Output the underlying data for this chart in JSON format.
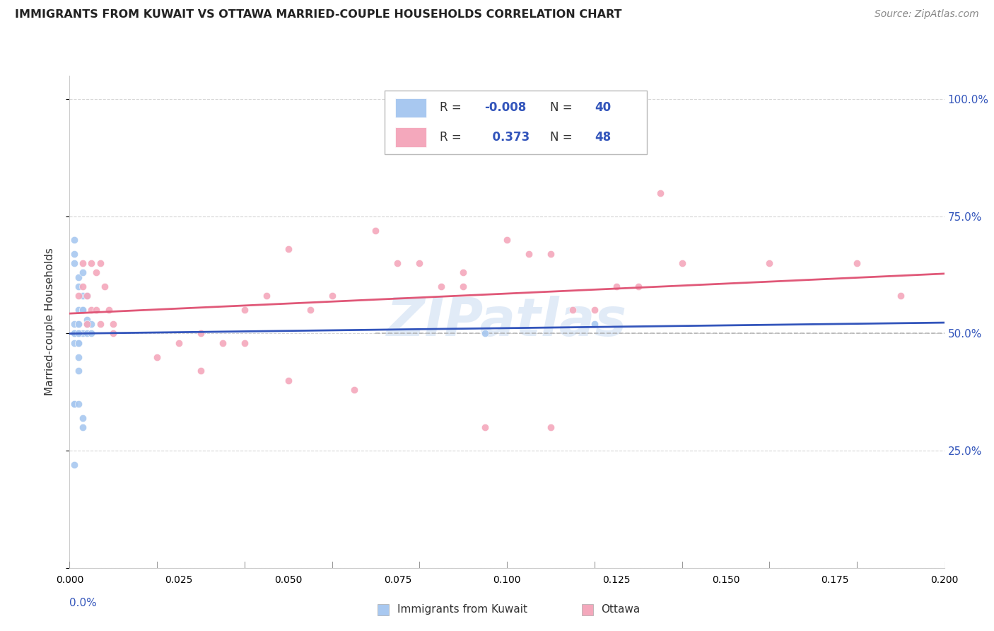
{
  "title": "IMMIGRANTS FROM KUWAIT VS OTTAWA MARRIED-COUPLE HOUSEHOLDS CORRELATION CHART",
  "source": "Source: ZipAtlas.com",
  "ylabel": "Married-couple Households",
  "y_ticks": [
    0.0,
    0.25,
    0.5,
    0.75,
    1.0
  ],
  "y_tick_labels": [
    "",
    "25.0%",
    "50.0%",
    "75.0%",
    "100.0%"
  ],
  "x_range": [
    0.0,
    0.2
  ],
  "y_range": [
    0.0,
    1.05
  ],
  "watermark": "ZIPatlas",
  "color_blue": "#a8c8f0",
  "color_pink": "#f4a8bc",
  "line_blue": "#3355bb",
  "line_pink": "#e05878",
  "line_gray_dashed": "#aaaaaa",
  "background_color": "#ffffff",
  "grid_color": "#cccccc",
  "blue_text": "#3355bb",
  "red_text": "#cc2222",
  "dark_text": "#333333"
}
